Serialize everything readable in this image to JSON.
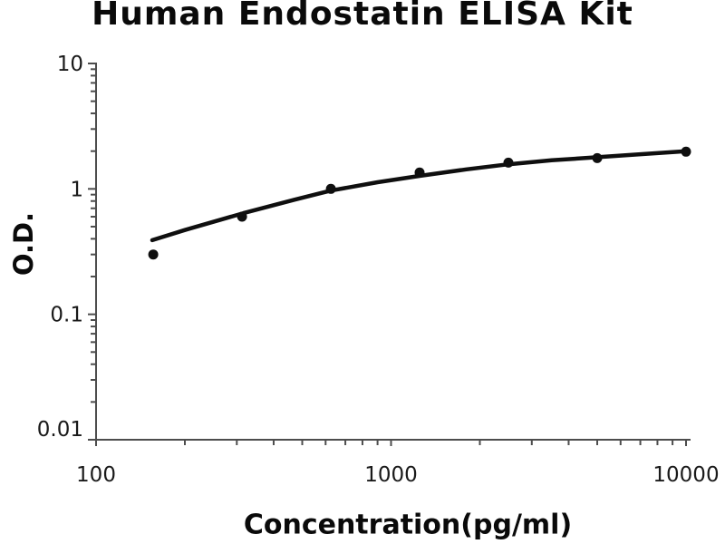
{
  "chart_data": {
    "type": "scatter",
    "title": "Human Endostatin ELISA Kit",
    "xlabel": "Concentration(pg/ml)",
    "ylabel": "O.D.",
    "x_scale": "log",
    "y_scale": "log",
    "xlim": [
      100,
      10000
    ],
    "ylim": [
      0.01,
      10
    ],
    "x_tick_labels": [
      "100",
      "1000",
      "10000"
    ],
    "x_tick_values": [
      100,
      1000,
      10000
    ],
    "y_tick_labels": [
      "0.01",
      "0.1",
      "1",
      "10"
    ],
    "y_tick_values": [
      0.01,
      0.1,
      1,
      10
    ],
    "grid": false,
    "legend": "none",
    "series": [
      {
        "name": "standard-points",
        "type": "points",
        "x": [
          156.25,
          312.5,
          625,
          1250,
          2500,
          5000,
          10000
        ],
        "y": [
          0.3,
          0.6,
          1.0,
          1.35,
          1.62,
          1.76,
          1.98
        ]
      },
      {
        "name": "fitted-curve",
        "type": "line",
        "x": [
          155,
          200,
          316,
          470,
          625,
          900,
          1250,
          1800,
          2500,
          3500,
          5000,
          7000,
          10000
        ],
        "y": [
          0.39,
          0.47,
          0.64,
          0.82,
          0.97,
          1.13,
          1.27,
          1.43,
          1.57,
          1.69,
          1.79,
          1.89,
          2.0
        ]
      }
    ],
    "colors": {
      "ink": "#0f0f0f",
      "axis": "#4d4d4d",
      "tick_label": "#1a1a1a"
    }
  }
}
